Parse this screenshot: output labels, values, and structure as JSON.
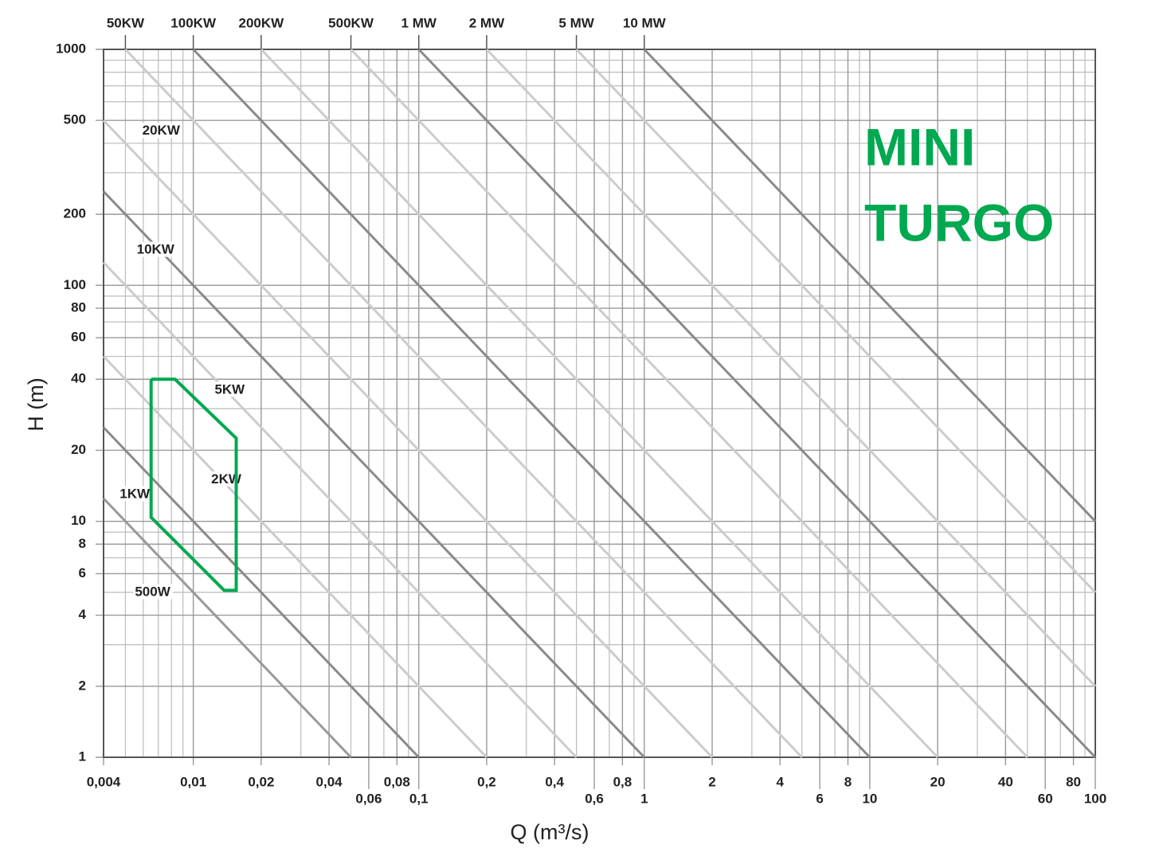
{
  "chart_data": {
    "type": "loglog-lines",
    "xlabel": "Q (m³/s)",
    "ylabel": "H (m)",
    "xlim": [
      0.004,
      100
    ],
    "ylim": [
      1,
      1000
    ],
    "xscale": "log",
    "yscale": "log",
    "grid": true,
    "minor_grid": true,
    "xticks": [
      {
        "value": 0.004,
        "label": "0,004"
      },
      {
        "value": 0.01,
        "label": "0,01"
      },
      {
        "value": 0.02,
        "label": "0,02"
      },
      {
        "value": 0.04,
        "label": "0,04"
      },
      {
        "value": 0.06,
        "label": "0,06"
      },
      {
        "value": 0.08,
        "label": "0,08"
      },
      {
        "value": 0.1,
        "label": "0,1"
      },
      {
        "value": 0.2,
        "label": "0,2"
      },
      {
        "value": 0.4,
        "label": "0,4"
      },
      {
        "value": 0.6,
        "label": "0,6"
      },
      {
        "value": 0.8,
        "label": "0,8"
      },
      1,
      2,
      4,
      6,
      8,
      10,
      20,
      40,
      60,
      80,
      100
    ],
    "yticks": [
      1,
      2,
      4,
      6,
      8,
      10,
      20,
      40,
      60,
      80,
      100,
      200,
      500,
      1000
    ],
    "lines": [
      {
        "label": "500W",
        "label_at": [
          0.0066,
          5
        ],
        "color": "#999999",
        "x": [
          0.004,
          0.05
        ],
        "y": [
          12.5,
          1
        ]
      },
      {
        "label": "1KW",
        "label_at": [
          0.0055,
          13
        ],
        "color": "#8a8a8a",
        "x": [
          0.004,
          0.1
        ],
        "y": [
          25,
          1
        ]
      },
      {
        "label": "2KW",
        "label_at": [
          0.014,
          15
        ],
        "color": "#cccccc",
        "x": [
          0.004,
          0.2
        ],
        "y": [
          50,
          1
        ]
      },
      {
        "label": "5KW",
        "label_at": [
          0.0145,
          36
        ],
        "color": "#cccccc",
        "x": [
          0.004,
          0.5
        ],
        "y": [
          125,
          1
        ]
      },
      {
        "label": "10KW",
        "label_at": [
          0.0068,
          141
        ],
        "color": "#8a8a8a",
        "x": [
          0.004,
          1
        ],
        "y": [
          250,
          1
        ]
      },
      {
        "label": "20KW",
        "label_at": [
          0.0072,
          450
        ],
        "color": "#cccccc",
        "x": [
          0.004,
          2
        ],
        "y": [
          500,
          1
        ]
      },
      {
        "label": "50KW",
        "color": "#cccccc",
        "x": [
          0.005,
          5
        ],
        "y": [
          1000,
          1
        ]
      },
      {
        "label": "100KW",
        "color": "#8a8a8a",
        "x": [
          0.01,
          10
        ],
        "y": [
          1000,
          1
        ]
      },
      {
        "label": "200KW",
        "color": "#cccccc",
        "x": [
          0.02,
          20
        ],
        "y": [
          1000,
          1
        ]
      },
      {
        "label": "500KW",
        "color": "#cccccc",
        "x": [
          0.05,
          50
        ],
        "y": [
          1000,
          1
        ]
      },
      {
        "label": "1 MW",
        "color": "#8a8a8a",
        "x": [
          0.1,
          100
        ],
        "y": [
          1000,
          1
        ]
      },
      {
        "label": "2 MW",
        "color": "#cccccc",
        "x": [
          0.2,
          100
        ],
        "y": [
          1000,
          2
        ]
      },
      {
        "label": "5 MW",
        "color": "#cccccc",
        "x": [
          0.5,
          100
        ],
        "y": [
          1000,
          5
        ]
      },
      {
        "label": "10 MW",
        "color": "#8a8a8a",
        "x": [
          1,
          100
        ],
        "y": [
          1000,
          10
        ]
      }
    ],
    "region": {
      "label_lines": [
        "MINI",
        "TURGO"
      ],
      "color": "#00a850",
      "x": [
        0.0065,
        0.0083,
        0.0155,
        0.0155,
        0.0137,
        0.0065,
        0.0065
      ],
      "y": [
        40,
        40,
        22.5,
        5.1,
        5.1,
        10.4,
        40
      ]
    }
  }
}
